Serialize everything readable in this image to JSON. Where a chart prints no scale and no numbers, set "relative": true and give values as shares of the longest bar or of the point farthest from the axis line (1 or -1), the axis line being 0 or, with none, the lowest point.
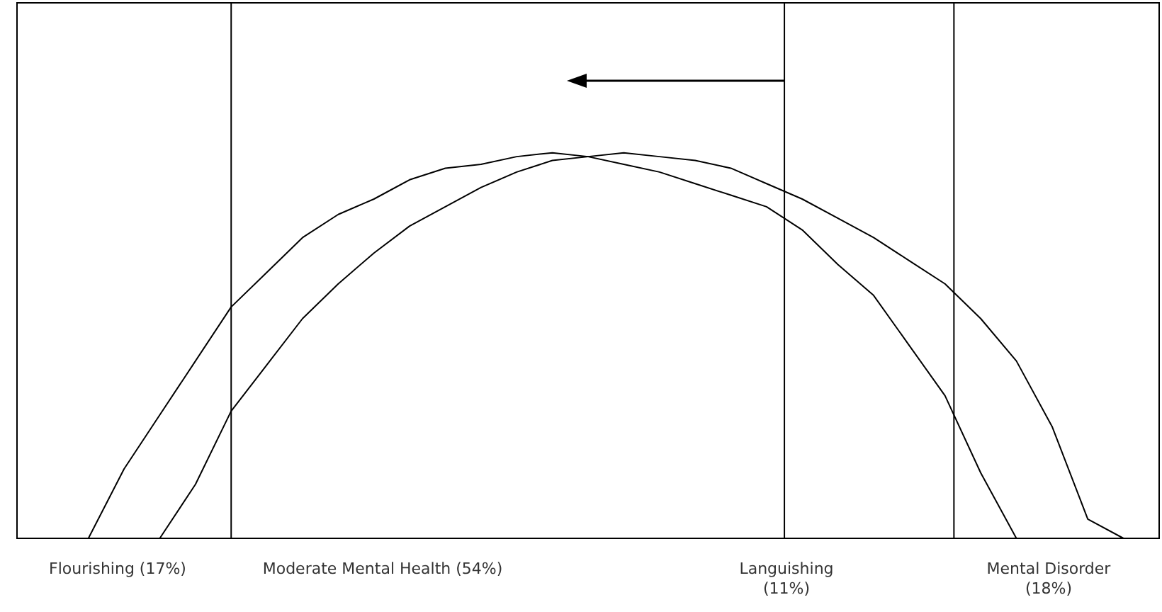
{
  "chart_data": {
    "type": "line",
    "relative": true,
    "line_style": "solid",
    "categories": [
      null,
      null,
      null,
      null,
      null,
      null,
      null,
      null,
      null,
      null,
      null,
      null,
      null,
      null,
      null,
      null,
      null,
      null,
      null,
      null,
      null,
      null,
      null,
      null,
      null,
      null,
      null,
      null,
      null,
      null,
      null,
      null,
      null
    ],
    "series": [
      {
        "color": "#000000",
        "values": [
          null,
          null,
          0,
          0.18,
          0.32,
          0.46,
          0.6,
          0.69,
          0.78,
          0.84,
          0.88,
          0.93,
          0.96,
          0.97,
          0.99,
          1,
          0.99,
          0.97,
          0.95,
          0.92,
          0.89,
          0.86,
          0.8,
          0.71,
          0.63,
          0.5,
          0.37,
          0.17,
          0,
          null,
          null,
          null,
          null
        ]
      },
      {
        "color": "#000000",
        "values": [
          null,
          null,
          null,
          null,
          0,
          0.14,
          0.33,
          0.45,
          0.57,
          0.66,
          0.74,
          0.81,
          0.86,
          0.91,
          0.95,
          0.98,
          0.99,
          1,
          0.99,
          0.98,
          0.96,
          0.92,
          0.88,
          0.83,
          0.78,
          0.72,
          0.66,
          0.57,
          0.46,
          0.29,
          0.05,
          0,
          null
        ]
      }
    ],
    "annotations": [
      "Flourishing (17%)",
      "Moderate Mental Health (54%)",
      "Languishing (11%)",
      "Mental Disorder (18%)"
    ]
  }
}
